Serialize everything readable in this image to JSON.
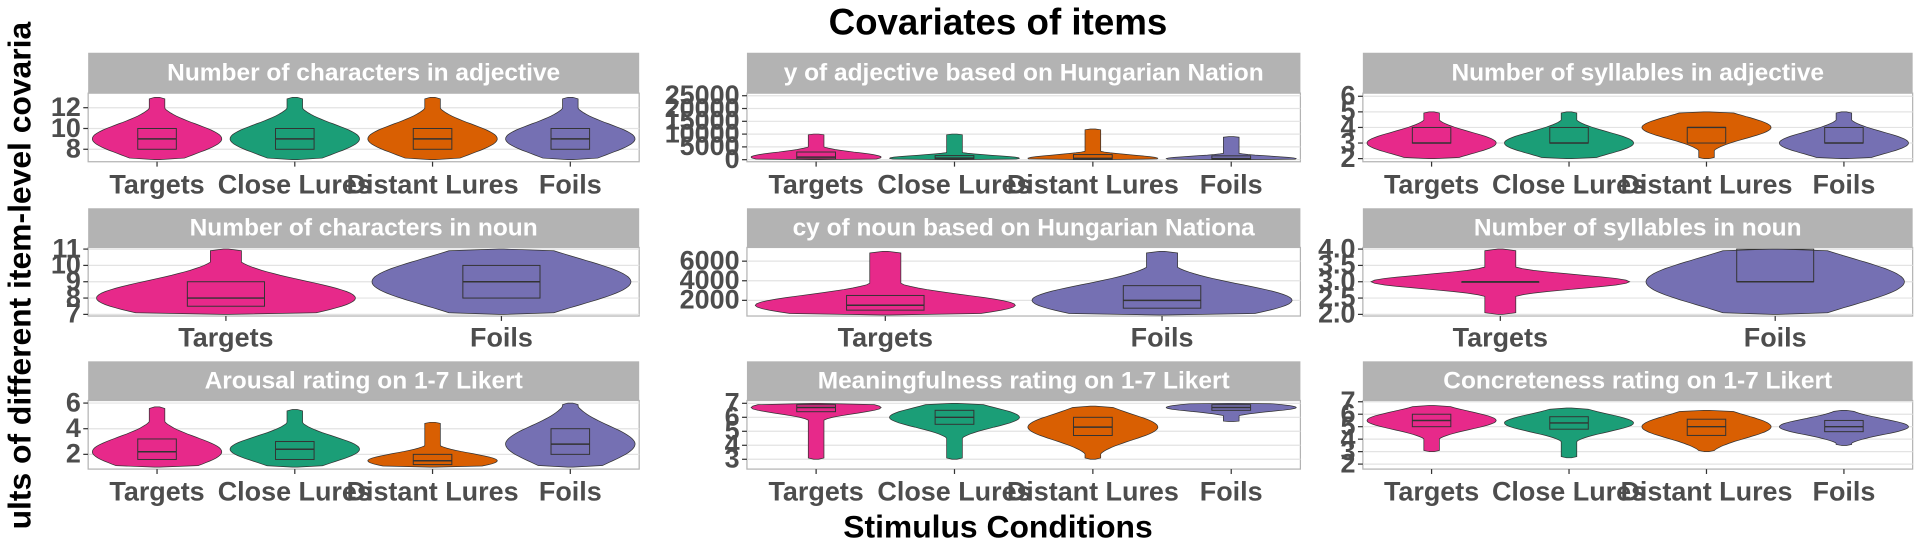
{
  "title": "Covariates of items",
  "x_label": "Stimulus Conditions",
  "y_label": "ults of different item-level covaria",
  "chart_data": [
    {
      "type": "box",
      "title": "Number of characters in adjective",
      "categories": [
        "Targets",
        "Close Lures",
        "Distant Lures",
        "Foils"
      ],
      "colors": [
        "#e7298a",
        "#1b9e77",
        "#d95f02",
        "#7570b3"
      ],
      "ylim": [
        6.8,
        13.4
      ],
      "yticks": [
        8,
        10,
        12
      ],
      "grid": true,
      "boxes": [
        {
          "median": 9,
          "q1": 8,
          "q3": 10,
          "min": 7,
          "max": 13
        },
        {
          "median": 9,
          "q1": 8,
          "q3": 10,
          "min": 7,
          "max": 13
        },
        {
          "median": 9,
          "q1": 8,
          "q3": 10,
          "min": 7,
          "max": 13
        },
        {
          "median": 9,
          "q1": 8,
          "q3": 10,
          "min": 7,
          "max": 13
        }
      ]
    },
    {
      "type": "box",
      "title": "y of adjective based on Hungarian Nation",
      "categories": [
        "Targets",
        "Close Lures",
        "Distant Lures",
        "Foils"
      ],
      "colors": [
        "#e7298a",
        "#1b9e77",
        "#d95f02",
        "#7570b3"
      ],
      "ylim": [
        -800,
        26000
      ],
      "yticks": [
        0,
        5000,
        10000,
        15000,
        20000,
        25000
      ],
      "grid": true,
      "boxes": [
        {
          "median": 1000,
          "q1": 300,
          "q3": 3000,
          "min": 0,
          "max": 10000
        },
        {
          "median": 600,
          "q1": 200,
          "q3": 1600,
          "min": 0,
          "max": 10000
        },
        {
          "median": 500,
          "q1": 100,
          "q3": 2000,
          "min": 0,
          "max": 12000
        },
        {
          "median": 400,
          "q1": 100,
          "q3": 1500,
          "min": 0,
          "max": 9000
        }
      ]
    },
    {
      "type": "box",
      "title": "Number of syllables in adjective",
      "categories": [
        "Targets",
        "Close Lures",
        "Distant Lures",
        "Foils"
      ],
      "colors": [
        "#e7298a",
        "#1b9e77",
        "#d95f02",
        "#7570b3"
      ],
      "ylim": [
        1.8,
        6.2
      ],
      "yticks": [
        2,
        3,
        4,
        5,
        6
      ],
      "grid": true,
      "boxes": [
        {
          "median": 3,
          "q1": 3,
          "q3": 4,
          "min": 2,
          "max": 5
        },
        {
          "median": 3,
          "q1": 3,
          "q3": 4,
          "min": 2,
          "max": 5
        },
        {
          "median": 4,
          "q1": 3,
          "q3": 4,
          "min": 2,
          "max": 5
        },
        {
          "median": 3,
          "q1": 3,
          "q3": 4,
          "min": 2,
          "max": 5
        }
      ]
    },
    {
      "type": "box",
      "title": "Number of characters in noun",
      "categories": [
        "Targets",
        "Foils"
      ],
      "colors": [
        "#e7298a",
        "#7570b3"
      ],
      "ylim": [
        6.9,
        11.1
      ],
      "yticks": [
        7,
        8,
        9,
        10,
        11
      ],
      "grid": true,
      "boxes": [
        {
          "median": 8,
          "q1": 7.5,
          "q3": 9,
          "min": 7,
          "max": 11
        },
        {
          "median": 9,
          "q1": 8,
          "q3": 10,
          "min": 7,
          "max": 11
        }
      ]
    },
    {
      "type": "box",
      "title": "cy of noun based on Hungarian Nationa",
      "categories": [
        "Targets",
        "Foils"
      ],
      "colors": [
        "#e7298a",
        "#7570b3"
      ],
      "ylim": [
        400,
        7400
      ],
      "yticks": [
        2000,
        4000,
        6000
      ],
      "grid": true,
      "boxes": [
        {
          "median": 1500,
          "q1": 1000,
          "q3": 2500,
          "min": 500,
          "max": 7000
        },
        {
          "median": 2000,
          "q1": 1200,
          "q3": 3500,
          "min": 500,
          "max": 7000
        }
      ]
    },
    {
      "type": "box",
      "title": "Number of syllables in noun",
      "categories": [
        "Targets",
        "Foils"
      ],
      "colors": [
        "#e7298a",
        "#7570b3"
      ],
      "ylim": [
        1.95,
        4.05
      ],
      "yticks": [
        {
          "value": 2,
          "label": "2.0"
        },
        {
          "value": 2.5,
          "label": "2.5"
        },
        {
          "value": 3,
          "label": "3.0"
        },
        {
          "value": 3.5,
          "label": "3.5"
        },
        {
          "value": 4,
          "label": "4.0"
        }
      ],
      "grid": true,
      "boxes": [
        {
          "median": 3,
          "q1": 3,
          "q3": 3,
          "min": 2,
          "max": 4
        },
        {
          "median": 3,
          "q1": 3,
          "q3": 4,
          "min": 2,
          "max": 4
        }
      ]
    },
    {
      "type": "box",
      "title": "Arousal rating on 1-7 Likert",
      "categories": [
        "Targets",
        "Close Lures",
        "Distant Lures",
        "Foils"
      ],
      "colors": [
        "#e7298a",
        "#1b9e77",
        "#d95f02",
        "#7570b3"
      ],
      "ylim": [
        0.85,
        6.2
      ],
      "yticks": [
        2,
        4,
        6
      ],
      "grid": true,
      "boxes": [
        {
          "median": 2.2,
          "q1": 1.6,
          "q3": 3.2,
          "min": 1,
          "max": 5.7
        },
        {
          "median": 2.4,
          "q1": 1.6,
          "q3": 3,
          "min": 1,
          "max": 5.5
        },
        {
          "median": 1.5,
          "q1": 1.2,
          "q3": 2,
          "min": 1,
          "max": 4.5
        },
        {
          "median": 2.8,
          "q1": 2,
          "q3": 4,
          "min": 1,
          "max": 6
        }
      ]
    },
    {
      "type": "box",
      "title": "Meaningfulness rating on 1-7 Likert",
      "categories": [
        "Targets",
        "Close Lures",
        "Distant Lures",
        "Foils"
      ],
      "colors": [
        "#e7298a",
        "#1b9e77",
        "#d95f02",
        "#7570b3"
      ],
      "ylim": [
        2.3,
        7.2
      ],
      "yticks": [
        3,
        4,
        5,
        6,
        7
      ],
      "grid": true,
      "boxes": [
        {
          "median": 6.7,
          "q1": 6.4,
          "q3": 6.9,
          "min": 3,
          "max": 7
        },
        {
          "median": 6,
          "q1": 5.5,
          "q3": 6.5,
          "min": 3,
          "max": 7
        },
        {
          "median": 5.3,
          "q1": 4.7,
          "q3": 6,
          "min": 3,
          "max": 6.8
        },
        {
          "median": 6.7,
          "q1": 6.5,
          "q3": 6.9,
          "min": 5.7,
          "max": 7
        }
      ]
    },
    {
      "type": "box",
      "title": "Concreteness rating on 1-7 Likert",
      "categories": [
        "Targets",
        "Close Lures",
        "Distant Lures",
        "Foils"
      ],
      "colors": [
        "#e7298a",
        "#1b9e77",
        "#d95f02",
        "#7570b3"
      ],
      "ylim": [
        1.6,
        7.1
      ],
      "yticks": [
        2,
        3,
        4,
        5,
        6,
        7
      ],
      "grid": true,
      "boxes": [
        {
          "median": 5.5,
          "q1": 5,
          "q3": 6,
          "min": 3,
          "max": 6.7
        },
        {
          "median": 5.3,
          "q1": 4.8,
          "q3": 5.8,
          "min": 2.5,
          "max": 6.5
        },
        {
          "median": 5,
          "q1": 4.3,
          "q3": 5.6,
          "min": 3,
          "max": 6.3
        },
        {
          "median": 5,
          "q1": 4.6,
          "q3": 5.5,
          "min": 3.5,
          "max": 6.3
        }
      ]
    }
  ]
}
